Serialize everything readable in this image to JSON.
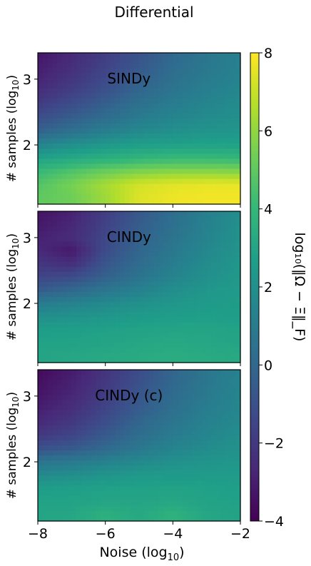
{
  "title": "Differential",
  "colorbar": {
    "label": "log₁₀(‖Ω − Ξ‖_F)",
    "range": [
      -4,
      8
    ],
    "ticks": [
      -4,
      -2,
      0,
      2,
      4,
      6,
      8
    ],
    "tick_labels": [
      "−4",
      "−2",
      "0",
      "2",
      "4",
      "6",
      "8"
    ],
    "colormap": [
      "#440154",
      "#482878",
      "#3e4989",
      "#31688e",
      "#26828e",
      "#1f9e89",
      "#35b779",
      "#6ece58",
      "#b5de2b",
      "#fde725"
    ]
  },
  "x_axis": {
    "label_main": "Noise (log",
    "label_sub": "10",
    "label_end": ")",
    "range": [
      -8,
      -2
    ],
    "ticks": [
      -8,
      -6,
      -4,
      -2
    ],
    "tick_labels": [
      "−8",
      "−6",
      "−4",
      "−2"
    ]
  },
  "y_axis": {
    "label_main": "# samples (log",
    "label_sub": "10",
    "label_end": ")",
    "range": [
      1.1,
      3.4
    ],
    "ticks": [
      2,
      3
    ],
    "tick_labels": [
      "2",
      "3"
    ]
  },
  "chart_data": [
    {
      "type": "heatmap",
      "panel": "SINDy",
      "xlabel": "",
      "ylabel": "# samples (log10)",
      "xlim": [
        -8,
        -2
      ],
      "ylim": [
        1.1,
        3.4
      ],
      "zlim": [
        -4,
        8
      ],
      "x": [
        -8,
        -7,
        -6,
        -5,
        -4,
        -3,
        -2
      ],
      "y": [
        1.2,
        1.4,
        1.6,
        1.8,
        2.0,
        2.2,
        2.4,
        2.6,
        2.8,
        3.0,
        3.2,
        3.4
      ],
      "z": [
        [
          5.0,
          5.3,
          6.2,
          7.4,
          7.7,
          7.8,
          7.8
        ],
        [
          4.7,
          5.5,
          6.4,
          7.2,
          7.5,
          7.6,
          7.6
        ],
        [
          4.0,
          4.6,
          5.2,
          5.6,
          5.8,
          5.8,
          5.7
        ],
        [
          2.8,
          3.2,
          3.5,
          3.8,
          4.0,
          4.0,
          3.9
        ],
        [
          1.4,
          2.0,
          2.4,
          2.7,
          2.8,
          2.9,
          2.8
        ],
        [
          -0.2,
          0.5,
          1.2,
          1.7,
          2.0,
          2.2,
          2.3
        ],
        [
          -1.1,
          -0.4,
          0.3,
          1.0,
          1.5,
          1.8,
          2.0
        ],
        [
          -1.8,
          -1.1,
          -0.3,
          0.5,
          1.1,
          1.5,
          1.8
        ],
        [
          -2.4,
          -1.7,
          -0.9,
          0.0,
          0.7,
          1.2,
          1.6
        ],
        [
          -2.8,
          -2.1,
          -1.3,
          -0.4,
          0.4,
          1.0,
          1.4
        ],
        [
          -3.1,
          -2.4,
          -1.6,
          -0.7,
          0.2,
          0.8,
          1.3
        ],
        [
          -3.3,
          -2.6,
          -1.8,
          -0.9,
          0.0,
          0.7,
          1.2
        ]
      ]
    },
    {
      "type": "heatmap",
      "panel": "CINDy",
      "xlabel": "",
      "ylabel": "# samples (log10)",
      "xlim": [
        -8,
        -2
      ],
      "ylim": [
        1.1,
        3.4
      ],
      "zlim": [
        -4,
        8
      ],
      "x": [
        -8,
        -7,
        -6,
        -5,
        -4,
        -3,
        -2
      ],
      "y": [
        1.2,
        1.4,
        1.6,
        1.8,
        2.0,
        2.2,
        2.4,
        2.6,
        2.8,
        3.0,
        3.2,
        3.4
      ],
      "z": [
        [
          3.0,
          3.1,
          3.2,
          3.3,
          3.4,
          3.3,
          3.2
        ],
        [
          2.9,
          2.9,
          3.0,
          3.1,
          3.2,
          3.1,
          3.0
        ],
        [
          2.6,
          2.7,
          2.8,
          2.9,
          3.0,
          3.0,
          2.9
        ],
        [
          1.9,
          2.1,
          2.3,
          2.5,
          2.6,
          2.7,
          2.6
        ],
        [
          1.0,
          1.3,
          1.7,
          2.0,
          2.3,
          2.5,
          2.6
        ],
        [
          -0.5,
          0.0,
          0.7,
          1.3,
          1.9,
          2.3,
          2.5
        ],
        [
          -1.5,
          -1.2,
          -0.3,
          0.6,
          1.4,
          2.0,
          2.4
        ],
        [
          -2.1,
          -2.4,
          -0.8,
          0.2,
          1.1,
          1.8,
          2.3
        ],
        [
          -2.6,
          -3.2,
          -1.2,
          -0.1,
          0.8,
          1.6,
          2.2
        ],
        [
          -2.9,
          -2.5,
          -1.4,
          -0.3,
          0.6,
          1.4,
          2.1
        ],
        [
          -3.2,
          -2.7,
          -1.6,
          -0.5,
          0.4,
          1.3,
          2.0
        ],
        [
          -3.4,
          -2.9,
          -1.8,
          -0.7,
          0.3,
          1.2,
          1.9
        ]
      ]
    },
    {
      "type": "heatmap",
      "panel": "CINDy (c)",
      "xlabel": "Noise (log10)",
      "ylabel": "# samples (log10)",
      "xlim": [
        -8,
        -2
      ],
      "ylim": [
        1.1,
        3.4
      ],
      "zlim": [
        -4,
        8
      ],
      "x": [
        -8,
        -7,
        -6,
        -5,
        -4,
        -3,
        -2
      ],
      "y": [
        1.2,
        1.4,
        1.6,
        1.8,
        2.0,
        2.2,
        2.4,
        2.6,
        2.8,
        3.0,
        3.2,
        3.4
      ],
      "z": [
        [
          3.0,
          3.1,
          3.6,
          3.2,
          3.7,
          3.1,
          2.9
        ],
        [
          2.9,
          2.9,
          3.0,
          3.0,
          3.1,
          2.9,
          2.8
        ],
        [
          2.6,
          2.7,
          2.8,
          2.8,
          2.9,
          2.8,
          2.7
        ],
        [
          1.7,
          1.9,
          2.2,
          2.4,
          2.5,
          2.5,
          2.5
        ],
        [
          0.6,
          0.9,
          1.3,
          1.7,
          2.0,
          2.2,
          2.3
        ],
        [
          -1.0,
          -0.6,
          0.1,
          0.8,
          1.4,
          1.8,
          2.1
        ],
        [
          -2.0,
          -1.5,
          -0.6,
          0.3,
          1.0,
          1.5,
          1.9
        ],
        [
          -2.6,
          -2.0,
          -1.1,
          -0.1,
          0.7,
          1.3,
          1.7
        ],
        [
          -3.0,
          -2.4,
          -1.5,
          -0.5,
          0.4,
          1.1,
          1.6
        ],
        [
          -3.3,
          -2.7,
          -1.8,
          -0.8,
          0.2,
          0.9,
          1.5
        ],
        [
          -3.5,
          -2.9,
          -2.0,
          -1.0,
          0.0,
          0.8,
          1.4
        ],
        [
          -3.7,
          -3.1,
          -2.2,
          -1.2,
          -0.1,
          0.7,
          1.3
        ]
      ]
    }
  ]
}
